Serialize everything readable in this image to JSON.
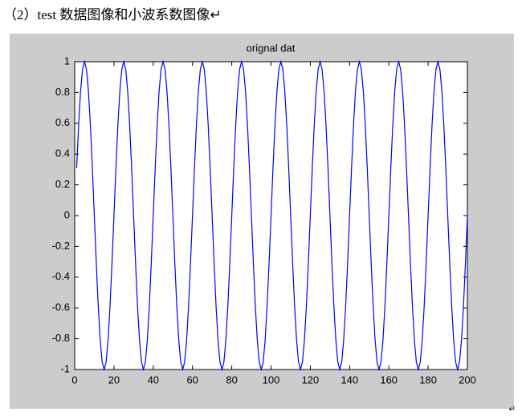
{
  "heading": "（2）test 数据图像和小波系数图像↵",
  "paragraph_mark": "↵",
  "chart_data": {
    "type": "line",
    "title": "orignal dat",
    "color": "#0000ff",
    "x": [
      1,
      2,
      3,
      4,
      5,
      6,
      7,
      8,
      9,
      10,
      11,
      12,
      13,
      14,
      15,
      16,
      17,
      18,
      19,
      20,
      21,
      22,
      23,
      24,
      25,
      26,
      27,
      28,
      29,
      30,
      31,
      32,
      33,
      34,
      35,
      36,
      37,
      38,
      39,
      40,
      41,
      42,
      43,
      44,
      45,
      46,
      47,
      48,
      49,
      50,
      51,
      52,
      53,
      54,
      55,
      56,
      57,
      58,
      59,
      60,
      61,
      62,
      63,
      64,
      65,
      66,
      67,
      68,
      69,
      70,
      71,
      72,
      73,
      74,
      75,
      76,
      77,
      78,
      79,
      80,
      81,
      82,
      83,
      84,
      85,
      86,
      87,
      88,
      89,
      90,
      91,
      92,
      93,
      94,
      95,
      96,
      97,
      98,
      99,
      100,
      101,
      102,
      103,
      104,
      105,
      106,
      107,
      108,
      109,
      110,
      111,
      112,
      113,
      114,
      115,
      116,
      117,
      118,
      119,
      120,
      121,
      122,
      123,
      124,
      125,
      126,
      127,
      128,
      129,
      130,
      131,
      132,
      133,
      134,
      135,
      136,
      137,
      138,
      139,
      140,
      141,
      142,
      143,
      144,
      145,
      146,
      147,
      148,
      149,
      150,
      151,
      152,
      153,
      154,
      155,
      156,
      157,
      158,
      159,
      160,
      161,
      162,
      163,
      164,
      165,
      166,
      167,
      168,
      169,
      170,
      171,
      172,
      173,
      174,
      175,
      176,
      177,
      178,
      179,
      180,
      181,
      182,
      183,
      184,
      185,
      186,
      187,
      188,
      189,
      190,
      191,
      192,
      193,
      194,
      195,
      196,
      197,
      198,
      199,
      200
    ],
    "values": [
      0.309,
      0.588,
      0.809,
      0.951,
      1,
      0.951,
      0.809,
      0.588,
      0.309,
      0,
      -0.309,
      -0.588,
      -0.809,
      -0.951,
      -1,
      -0.951,
      -0.809,
      -0.588,
      -0.309,
      0,
      0.309,
      0.588,
      0.809,
      0.951,
      1,
      0.951,
      0.809,
      0.588,
      0.309,
      0,
      -0.309,
      -0.588,
      -0.809,
      -0.951,
      -1,
      -0.951,
      -0.809,
      -0.588,
      -0.309,
      0,
      0.309,
      0.588,
      0.809,
      0.951,
      1,
      0.951,
      0.809,
      0.588,
      0.309,
      0,
      -0.309,
      -0.588,
      -0.809,
      -0.951,
      -1,
      -0.951,
      -0.809,
      -0.588,
      -0.309,
      0,
      0.309,
      0.588,
      0.809,
      0.951,
      1,
      0.951,
      0.809,
      0.588,
      0.309,
      0,
      -0.309,
      -0.588,
      -0.809,
      -0.951,
      -1,
      -0.951,
      -0.809,
      -0.588,
      -0.309,
      0,
      0.309,
      0.588,
      0.809,
      0.951,
      1,
      0.951,
      0.809,
      0.588,
      0.309,
      0,
      -0.309,
      -0.588,
      -0.809,
      -0.951,
      -1,
      -0.951,
      -0.809,
      -0.588,
      -0.309,
      0,
      0.309,
      0.588,
      0.809,
      0.951,
      1,
      0.951,
      0.809,
      0.588,
      0.309,
      0,
      -0.309,
      -0.588,
      -0.809,
      -0.951,
      -1,
      -0.951,
      -0.809,
      -0.588,
      -0.309,
      0,
      0.309,
      0.588,
      0.809,
      0.951,
      1,
      0.951,
      0.809,
      0.588,
      0.309,
      0,
      -0.309,
      -0.588,
      -0.809,
      -0.951,
      -1,
      -0.951,
      -0.809,
      -0.588,
      -0.309,
      0,
      0.309,
      0.588,
      0.809,
      0.951,
      1,
      0.951,
      0.809,
      0.588,
      0.309,
      0,
      -0.309,
      -0.588,
      -0.809,
      -0.951,
      -1,
      -0.951,
      -0.809,
      -0.588,
      -0.309,
      0,
      0.309,
      0.588,
      0.809,
      0.951,
      1,
      0.951,
      0.809,
      0.588,
      0.309,
      0,
      -0.309,
      -0.588,
      -0.809,
      -0.951,
      -1,
      -0.951,
      -0.809,
      -0.588,
      -0.309,
      0,
      0.309,
      0.588,
      0.809,
      0.951,
      1,
      0.951,
      0.809,
      0.588,
      0.309,
      0,
      -0.309,
      -0.588,
      -0.809,
      -0.951,
      -1,
      -0.951,
      -0.809,
      -0.588,
      -0.309,
      0
    ],
    "xlim": [
      0,
      200
    ],
    "xticks": [
      0,
      20,
      40,
      60,
      80,
      100,
      120,
      140,
      160,
      180,
      200
    ],
    "ylim": [
      -1,
      1
    ],
    "yticks": [
      -1,
      -0.8,
      -0.6,
      -0.4,
      -0.2,
      0,
      0.2,
      0.4,
      0.6,
      0.8,
      1
    ],
    "grid": false
  }
}
